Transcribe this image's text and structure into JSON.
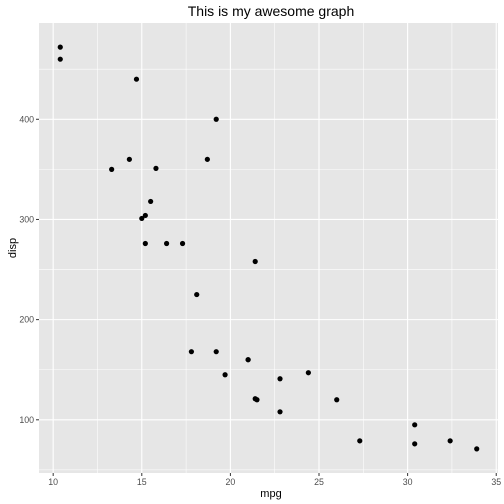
{
  "chart_data": {
    "type": "scatter",
    "title": "This is my awesome graph",
    "xlabel": "mpg",
    "ylabel": "disp",
    "xlim": [
      9.2,
      35.1
    ],
    "ylim": [
      46.9,
      496.1
    ],
    "x_ticks": [
      10,
      15,
      20,
      25,
      30,
      35
    ],
    "y_ticks": [
      100,
      200,
      300,
      400
    ],
    "x_minor": [
      12.5,
      17.5,
      22.5,
      27.5,
      32.5
    ],
    "y_minor": [
      50,
      150,
      250,
      350,
      450
    ],
    "grid": true,
    "panel_background": "#e6e6e6",
    "grid_color": "#ffffff",
    "point_color": "#000000",
    "tick_color": "#333333",
    "points": [
      {
        "x": 10.4,
        "y": 472
      },
      {
        "x": 10.4,
        "y": 460
      },
      {
        "x": 14.7,
        "y": 440
      },
      {
        "x": 19.2,
        "y": 400
      },
      {
        "x": 14.3,
        "y": 360
      },
      {
        "x": 18.7,
        "y": 360
      },
      {
        "x": 15.8,
        "y": 351
      },
      {
        "x": 13.3,
        "y": 350
      },
      {
        "x": 15.5,
        "y": 318
      },
      {
        "x": 15.2,
        "y": 304
      },
      {
        "x": 15.0,
        "y": 301
      },
      {
        "x": 15.2,
        "y": 276
      },
      {
        "x": 16.4,
        "y": 276
      },
      {
        "x": 17.3,
        "y": 276
      },
      {
        "x": 21.4,
        "y": 258
      },
      {
        "x": 18.1,
        "y": 225
      },
      {
        "x": 17.8,
        "y": 168
      },
      {
        "x": 19.2,
        "y": 168
      },
      {
        "x": 21.0,
        "y": 160
      },
      {
        "x": 21.0,
        "y": 160
      },
      {
        "x": 19.7,
        "y": 145
      },
      {
        "x": 24.4,
        "y": 147
      },
      {
        "x": 22.8,
        "y": 141
      },
      {
        "x": 21.4,
        "y": 121
      },
      {
        "x": 21.5,
        "y": 120
      },
      {
        "x": 26.0,
        "y": 120
      },
      {
        "x": 22.8,
        "y": 108
      },
      {
        "x": 30.4,
        "y": 95
      },
      {
        "x": 27.3,
        "y": 79
      },
      {
        "x": 32.4,
        "y": 79
      },
      {
        "x": 30.4,
        "y": 76
      },
      {
        "x": 33.9,
        "y": 71
      }
    ]
  }
}
